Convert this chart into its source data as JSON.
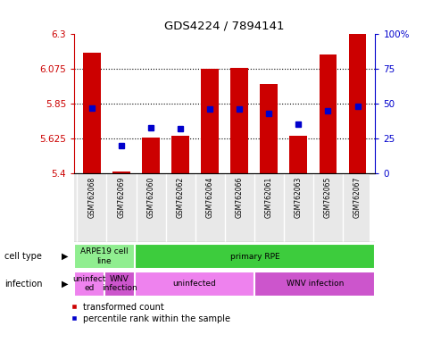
{
  "title": "GDS4224 / 7894141",
  "samples": [
    "GSM762068",
    "GSM762069",
    "GSM762060",
    "GSM762062",
    "GSM762064",
    "GSM762066",
    "GSM762061",
    "GSM762063",
    "GSM762065",
    "GSM762067"
  ],
  "transformed_count": [
    6.18,
    5.41,
    5.63,
    5.64,
    6.075,
    6.08,
    5.98,
    5.64,
    6.17,
    6.3
  ],
  "percentile_rank": [
    47,
    20,
    33,
    32,
    46,
    46,
    43,
    35,
    45,
    48
  ],
  "ylim": [
    5.4,
    6.3
  ],
  "yticks": [
    5.4,
    5.625,
    5.85,
    6.075,
    6.3
  ],
  "ytick_labels": [
    "5.4",
    "5.625",
    "5.85",
    "6.075",
    "6.3"
  ],
  "right_yticks": [
    0,
    25,
    50,
    75,
    100
  ],
  "right_ytick_labels": [
    "0",
    "25",
    "50",
    "75",
    "100%"
  ],
  "bar_color": "#cc0000",
  "dot_color": "#0000cc",
  "cell_type_labels": [
    {
      "label": "ARPE19 cell\nline",
      "start": 0,
      "end": 2,
      "color": "#90ee90"
    },
    {
      "label": "primary RPE",
      "start": 2,
      "end": 10,
      "color": "#3dcc3d"
    }
  ],
  "infection_labels": [
    {
      "label": "uninfect\ned",
      "start": 0,
      "end": 1,
      "color": "#ee82ee"
    },
    {
      "label": "WNV\ninfection",
      "start": 1,
      "end": 2,
      "color": "#cc55cc"
    },
    {
      "label": "uninfected",
      "start": 2,
      "end": 6,
      "color": "#ee82ee"
    },
    {
      "label": "WNV infection",
      "start": 6,
      "end": 10,
      "color": "#cc55cc"
    }
  ],
  "tick_color_left": "#cc0000",
  "tick_color_right": "#0000cc",
  "bg_color": "#e8e8e8"
}
